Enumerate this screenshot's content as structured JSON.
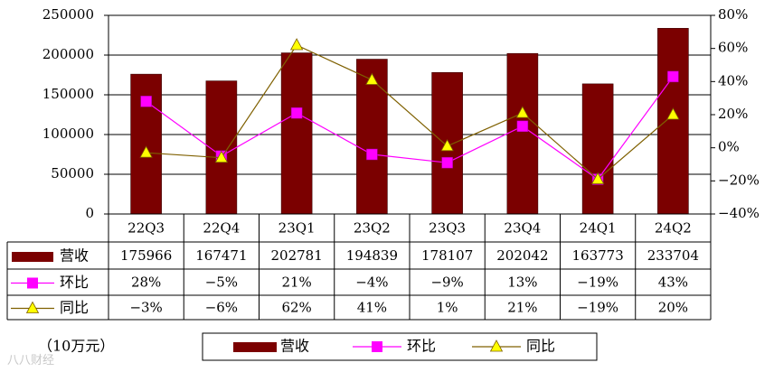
{
  "chart_data": {
    "type": "bar",
    "categories": [
      "22Q3",
      "22Q4",
      "23Q1",
      "23Q2",
      "23Q3",
      "23Q4",
      "24Q1",
      "24Q2"
    ],
    "series": [
      {
        "name": "营收",
        "type": "bar",
        "axis": "left",
        "color": "#7b0000",
        "values": [
          175966,
          167471,
          202781,
          194839,
          178107,
          202042,
          163773,
          233704
        ]
      },
      {
        "name": "环比",
        "type": "line",
        "axis": "right",
        "color": "#ff00ff",
        "marker": "square",
        "values": [
          28,
          -5,
          21,
          -4,
          -9,
          13,
          -19,
          43
        ],
        "labels": [
          "28%",
          "−5%",
          "21%",
          "−4%",
          "−9%",
          "13%",
          "−19%",
          "43%"
        ]
      },
      {
        "name": "同比",
        "type": "line",
        "axis": "right",
        "color": "#7f6000",
        "marker": "triangle",
        "marker_color": "#ffff00",
        "values": [
          -3,
          -6,
          62,
          41,
          1,
          21,
          -19,
          20
        ],
        "labels": [
          "−3%",
          "−6%",
          "62%",
          "41%",
          "1%",
          "21%",
          "−19%",
          "20%"
        ]
      }
    ],
    "y_left": {
      "min": 0,
      "max": 250000,
      "step": 50000,
      "ticks": [
        "0",
        "50000",
        "100000",
        "150000",
        "200000",
        "250000"
      ]
    },
    "y_right": {
      "min": -40,
      "max": 80,
      "step": 20,
      "ticks": [
        "−40%",
        "−20%",
        "0%",
        "20%",
        "40%",
        "60%",
        "80%"
      ]
    },
    "unit_label": "（10万元）",
    "data_table": true,
    "legend_position": "bottom",
    "watermark": "八八财经"
  }
}
